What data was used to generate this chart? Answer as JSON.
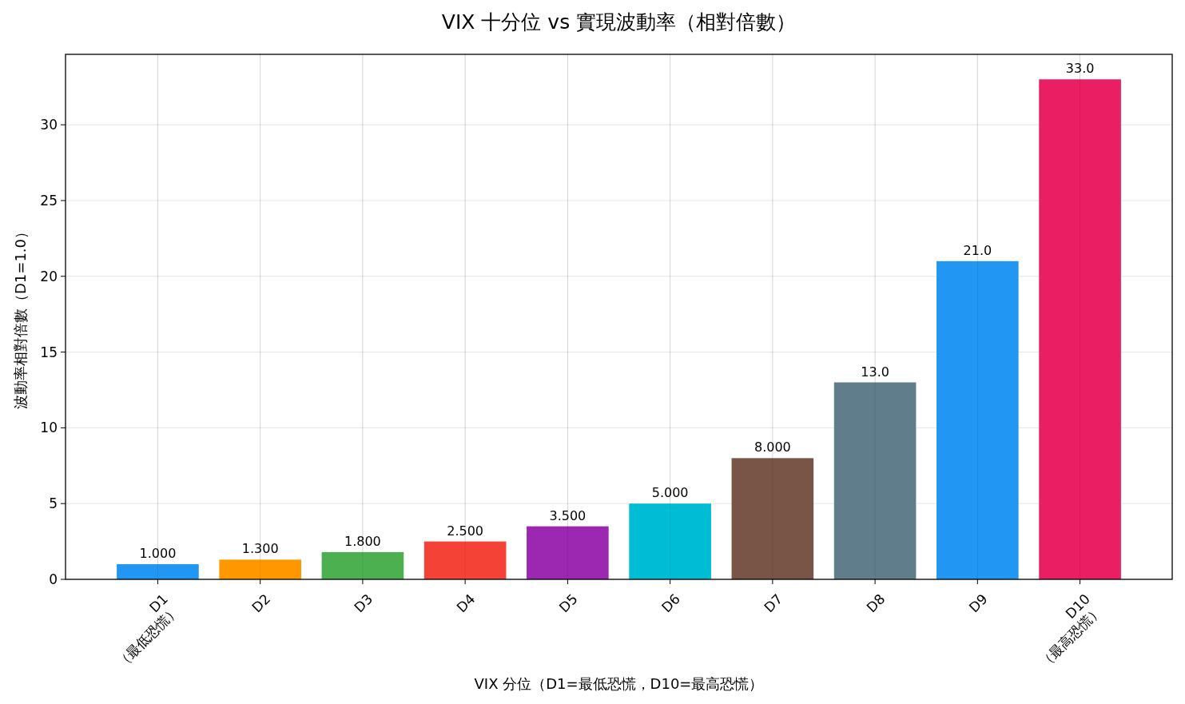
{
  "chart_data": {
    "type": "bar",
    "title": "VIX 十分位 vs 實現波動率（相對倍數）",
    "xlabel": "VIX 分位（D1=最低恐慌，D10=最高恐慌）",
    "ylabel": "波動率相對倍數（D1=1.0）",
    "categories": [
      "D1\n（最低恐慌）",
      "D2",
      "D3",
      "D4",
      "D5",
      "D6",
      "D7",
      "D8",
      "D9",
      "D10\n（最高恐慌）"
    ],
    "values": [
      1,
      1.3,
      1.8,
      2.5,
      3.5,
      5,
      8,
      13,
      21,
      33
    ],
    "value_labels": [
      "1.000",
      "1.300",
      "1.800",
      "2.500",
      "3.500",
      "5.000",
      "8.000",
      "13.0",
      "21.0",
      "33.0"
    ],
    "colors": [
      "#2196f3",
      "#ff9800",
      "#4caf50",
      "#f44336",
      "#9c27b0",
      "#00bcd4",
      "#795548",
      "#607d8b",
      "#2196f3",
      "#e91e63"
    ],
    "ylim": [
      0,
      34.65
    ],
    "yticks": [
      0,
      5,
      10,
      15,
      20,
      25,
      30
    ],
    "grid": true
  }
}
